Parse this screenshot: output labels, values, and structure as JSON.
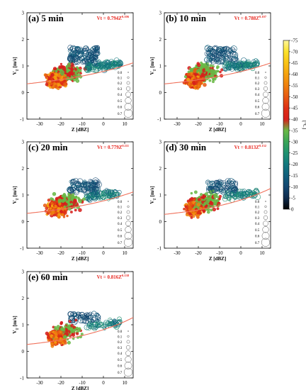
{
  "colorbar": {
    "unit": "[°C]",
    "ticks": [
      "-75",
      "-70",
      "-65",
      "-60",
      "-55",
      "-50",
      "-45",
      "-40",
      "-35",
      "-30",
      "-25",
      "-20",
      "-15",
      "-10",
      "-5",
      "0"
    ],
    "stops": [
      {
        "v": -75,
        "c": "#fff79a"
      },
      {
        "v": -70,
        "c": "#fbe12a"
      },
      {
        "v": -65,
        "c": "#f9c315"
      },
      {
        "v": -60,
        "c": "#f5a20f"
      },
      {
        "v": -55,
        "c": "#ef810f"
      },
      {
        "v": -50,
        "c": "#e75a12"
      },
      {
        "v": -45,
        "c": "#de3015"
      },
      {
        "v": -40,
        "c": "#d61f1c"
      },
      {
        "v": -35,
        "c": "#69b845"
      },
      {
        "v": -30,
        "c": "#3aa557"
      },
      {
        "v": -25,
        "c": "#1f9270"
      },
      {
        "v": -20,
        "c": "#13797e"
      },
      {
        "v": -15,
        "c": "#115f7c"
      },
      {
        "v": -10,
        "c": "#134770"
      },
      {
        "v": -5,
        "c": "#0f2b4d"
      },
      {
        "v": 0,
        "c": "#040404"
      }
    ]
  },
  "size_legend": [
    "0.0",
    "0.1",
    "0.2",
    "0.3",
    "0.4",
    "0.5",
    "0.6",
    "0.7"
  ],
  "axes": {
    "xlabel": "Z [dBZ]",
    "ylabel_main": "V",
    "ylabel_sub": "T",
    "ylabel_unit": " [m/s]",
    "xticks": [
      "-30",
      "-20",
      "-10",
      "0",
      "10"
    ],
    "yticks": [
      "-1",
      "0",
      "1",
      "2",
      "3"
    ],
    "xlim": [
      -36,
      14
    ],
    "ylim": [
      -1,
      3
    ]
  },
  "chart_data": [
    {
      "type": "scatter",
      "title": "(a) 5 min",
      "fit_label": "Vt = 0.794Z",
      "fit_exp": "0.106",
      "fit": {
        "a": 0.794,
        "b": 0.106
      },
      "density": 1.0,
      "seed": 11
    },
    {
      "type": "scatter",
      "title": "(b) 10 min",
      "fit_label": "Vt = 0.788Z",
      "fit_exp": "0.107",
      "fit": {
        "a": 0.788,
        "b": 0.107
      },
      "density": 0.95,
      "seed": 23
    },
    {
      "type": "scatter",
      "title": "(c) 20 min",
      "fit_label": "Vt = 0.779Z",
      "fit_exp": "0.111",
      "fit": {
        "a": 0.779,
        "b": 0.111
      },
      "density": 0.75,
      "seed": 37
    },
    {
      "type": "scatter",
      "title": "(d) 30 min",
      "fit_label": "Vt = 0.813Z",
      "fit_exp": "0.132",
      "fit": {
        "a": 0.813,
        "b": 0.132
      },
      "density": 0.7,
      "seed": 51
    },
    {
      "type": "scatter",
      "title": "(e) 60 min",
      "fit_label": "Vt = 0.816Z",
      "fit_exp": "0.138",
      "fit": {
        "a": 0.816,
        "b": 0.138
      },
      "density": 0.55,
      "seed": 67
    }
  ]
}
